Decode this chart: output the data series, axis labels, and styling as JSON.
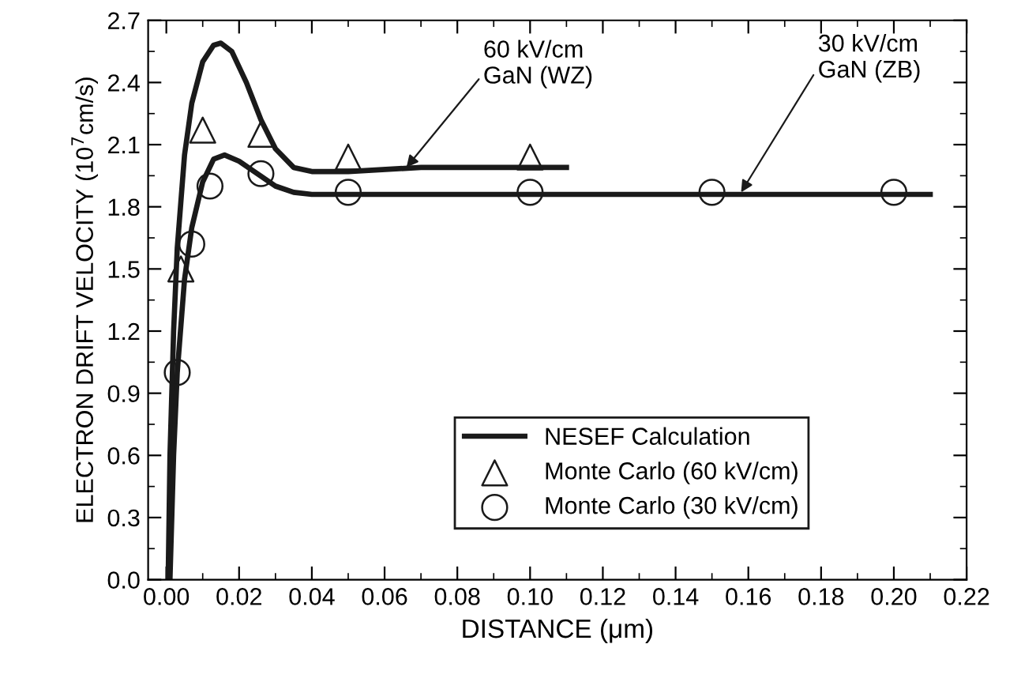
{
  "chart_data": {
    "type": "line",
    "xlabel": "DISTANCE (μm)",
    "ylabel": "ELECTRON DRIFT VELOCITY (10$^{7}$cm/s)",
    "xlim": [
      -0.005,
      0.22
    ],
    "ylim": [
      0.0,
      2.7
    ],
    "xticks": [
      {
        "value": 0,
        "label": "0.00"
      },
      0.02,
      0.04,
      0.06,
      0.08,
      {
        "value": 0.1,
        "label": "0.10"
      },
      0.12,
      0.14,
      0.16,
      0.18,
      {
        "value": 0.2,
        "label": "0.20"
      },
      0.22
    ],
    "yticks": [
      {
        "value": 0,
        "label": "0.0"
      },
      0.3,
      0.6,
      0.9,
      1.2,
      1.5,
      1.8,
      2.1,
      2.4,
      2.7
    ],
    "grid": false,
    "legend": "bottom right",
    "series": [
      {
        "name": "NESEF Calculation",
        "color": "#1a1a1a",
        "line_style": "solid",
        "marker": "none",
        "x": [
          0.0005,
          0.001,
          0.002,
          0.003,
          0.005,
          0.007,
          0.01,
          0.013,
          0.015,
          0.018,
          0.022,
          0.026,
          0.03,
          0.035,
          0.04,
          0.05,
          0.07,
          0.11
        ],
        "values": [
          0,
          0.6,
          1.2,
          1.6,
          2.05,
          2.3,
          2.5,
          2.58,
          2.59,
          2.55,
          2.4,
          2.22,
          2.08,
          1.99,
          1.97,
          1.97,
          1.99,
          1.99
        ]
      },
      {
        "color": "#1a1a1a",
        "line_style": "solid",
        "marker": "none",
        "x": [
          0.001,
          0.002,
          0.003,
          0.005,
          0.007,
          0.01,
          0.013,
          0.016,
          0.02,
          0.025,
          0.03,
          0.035,
          0.04,
          0.21
        ],
        "values": [
          0,
          0.6,
          1.0,
          1.45,
          1.7,
          1.92,
          2.03,
          2.05,
          2.02,
          1.96,
          1.9,
          1.87,
          1.86,
          1.86
        ]
      },
      {
        "name": "Monte Carlo (60 kV/cm)",
        "type": "scatter",
        "color": "#1a1a1a",
        "marker": "triangle",
        "x": [
          0.004,
          0.01,
          0.026,
          0.05,
          0.1
        ],
        "values": [
          1.5,
          2.17,
          2.15,
          2.04,
          2.04
        ]
      },
      {
        "name": "Monte Carlo (30 kV/cm)",
        "type": "scatter",
        "color": "#1a1a1a",
        "marker": "circle",
        "x": [
          0.003,
          0.007,
          0.012,
          0.026,
          0.05,
          0.1,
          0.15,
          0.2
        ],
        "values": [
          1.0,
          1.62,
          1.9,
          1.96,
          1.87,
          1.87,
          1.87,
          1.87
        ]
      }
    ],
    "annotations": [
      {
        "text": "60 kV/cm\nGaN (WZ)",
        "x": 0.066,
        "y": 1.99
      },
      {
        "text": "30 kV/cm\nGaN (ZB)",
        "x": 0.158,
        "y": 1.87
      }
    ]
  }
}
